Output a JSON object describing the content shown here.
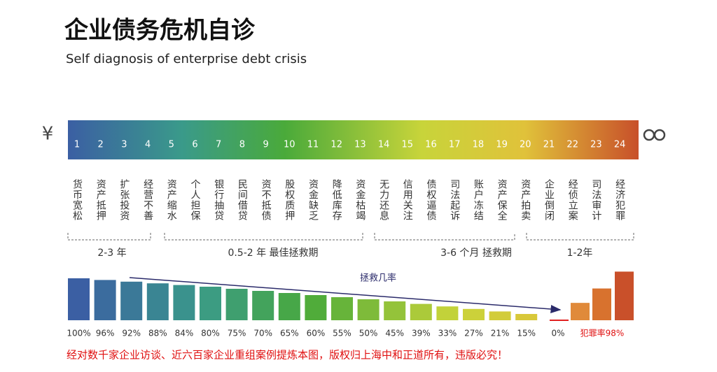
{
  "title": "企业债务危机自诊",
  "subtitle": "Self diagnosis of enterprise debt crisis",
  "currency": "¥",
  "stages": [
    {
      "number": 1,
      "label": "货币宽松"
    },
    {
      "number": 2,
      "label": "资产抵押"
    },
    {
      "number": 3,
      "label": "扩张投资"
    },
    {
      "number": 4,
      "label": "经营不善"
    },
    {
      "number": 5,
      "label": "资产缩水"
    },
    {
      "number": 6,
      "label": "个人担保"
    },
    {
      "number": 7,
      "label": "银行抽贷"
    },
    {
      "number": 8,
      "label": "民间借贷"
    },
    {
      "number": 9,
      "label": "资不抵债"
    },
    {
      "number": 10,
      "label": "股权质押"
    },
    {
      "number": 11,
      "label": "资金缺乏"
    },
    {
      "number": 12,
      "label": "降低库存"
    },
    {
      "number": 13,
      "label": "资金枯竭"
    },
    {
      "number": 14,
      "label": "无力还息"
    },
    {
      "number": 15,
      "label": "信用关注"
    },
    {
      "number": 16,
      "label": "债权逼债"
    },
    {
      "number": 17,
      "label": "司法起诉"
    },
    {
      "number": 18,
      "label": "账户冻结"
    },
    {
      "number": 19,
      "label": "资产保全"
    },
    {
      "number": 20,
      "label": "资产拍卖"
    },
    {
      "number": 21,
      "label": "企业倒闭"
    },
    {
      "number": 22,
      "label": "经侦立案"
    },
    {
      "number": 23,
      "label": "司法审计"
    },
    {
      "number": 24,
      "label": "经济犯罪"
    }
  ],
  "phases": [
    "2-3 年",
    "0.5-2 年  最佳拯救期",
    "3-6 个月  拯救期",
    "1-2年"
  ],
  "rescue_label": "拯救几率",
  "rescue": [
    {
      "value": 100,
      "label": "100%"
    },
    {
      "value": 96,
      "label": "96%"
    },
    {
      "value": 92,
      "label": "92%"
    },
    {
      "value": 88,
      "label": "88%"
    },
    {
      "value": 84,
      "label": "84%"
    },
    {
      "value": 80,
      "label": "80%"
    },
    {
      "value": 75,
      "label": "75%"
    },
    {
      "value": 70,
      "label": "70%"
    },
    {
      "value": 65,
      "label": "65%"
    },
    {
      "value": 60,
      "label": "60%"
    },
    {
      "value": 55,
      "label": "55%"
    },
    {
      "value": 50,
      "label": "50%"
    },
    {
      "value": 45,
      "label": "45%"
    },
    {
      "value": 39,
      "label": "39%"
    },
    {
      "value": 33,
      "label": "33%"
    },
    {
      "value": 27,
      "label": "27%"
    },
    {
      "value": 21,
      "label": "21%"
    },
    {
      "value": 15,
      "label": "15%"
    },
    {
      "value": 0,
      "label": "0%"
    }
  ],
  "crime": [
    {
      "value": 35
    },
    {
      "value": 64
    },
    {
      "value": 98,
      "label": "犯罪率98%"
    }
  ],
  "footer": "经对数千家企业访谈、近六百家企业重组案例提炼本图，版权归上海中和正道所有，违版必究！"
}
